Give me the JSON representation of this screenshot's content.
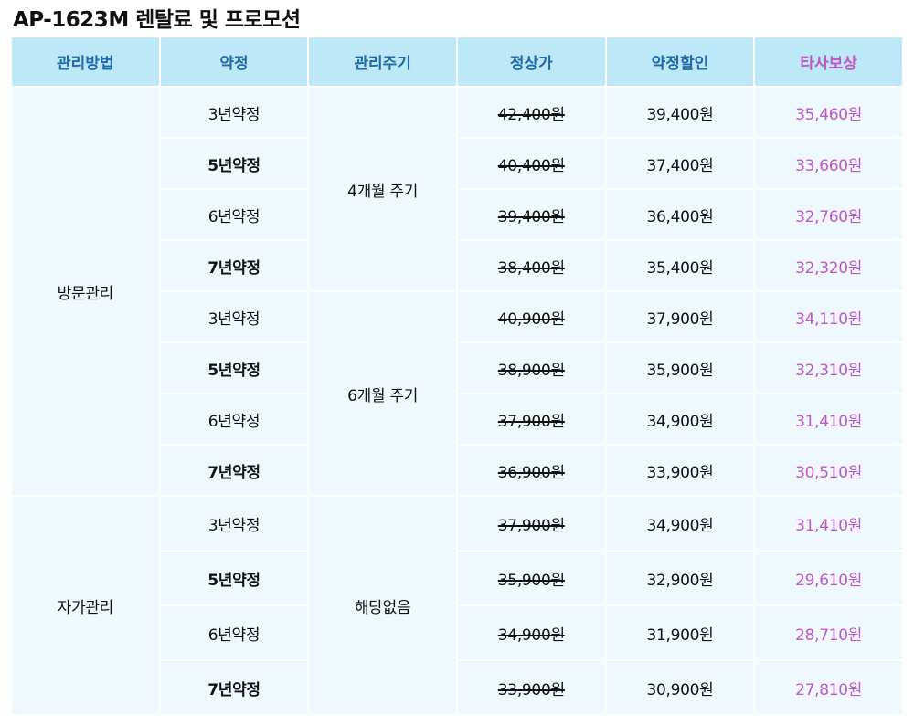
{
  "title": "AP-1623M 렌탈료 및 프로모션",
  "headers": {
    "method": "관리방법",
    "term": "약정",
    "cycle": "관리주기",
    "list_price": "정상가",
    "contract_discount": "약정할인",
    "competitor_comp": "타사보상"
  },
  "groups": {
    "visit": {
      "method": "방문관리",
      "cycle_a": "4개월 주기",
      "cycle_b": "6개월 주기",
      "rows": [
        {
          "term": "3년약정",
          "list": "42,400원",
          "discount": "39,400원",
          "comp": "35,460원"
        },
        {
          "term": "5년약정",
          "list": "40,400원",
          "discount": "37,400원",
          "comp": "33,660원"
        },
        {
          "term": "6년약정",
          "list": "39,400원",
          "discount": "36,400원",
          "comp": "32,760원"
        },
        {
          "term": "7년약정",
          "list": "38,400원",
          "discount": "35,400원",
          "comp": "32,320원"
        },
        {
          "term": "3년약정",
          "list": "40,900원",
          "discount": "37,900원",
          "comp": "34,110원"
        },
        {
          "term": "5년약정",
          "list": "38,900원",
          "discount": "35,900원",
          "comp": "32,310원"
        },
        {
          "term": "6년약정",
          "list": "37,900원",
          "discount": "34,900원",
          "comp": "31,410원"
        },
        {
          "term": "7년약정",
          "list": "36,900원",
          "discount": "33,900원",
          "comp": "30,510원"
        }
      ]
    },
    "self": {
      "method": "자가관리",
      "cycle": "해당없음",
      "rows": [
        {
          "term": "3년약정",
          "list": "37,900원",
          "discount": "34,900원",
          "comp": "31,410원"
        },
        {
          "term": "5년약정",
          "list": "35,900원",
          "discount": "32,900원",
          "comp": "29,610원"
        },
        {
          "term": "6년약정",
          "list": "34,900원",
          "discount": "31,900원",
          "comp": "28,710원"
        },
        {
          "term": "7년약정",
          "list": "33,900원",
          "discount": "30,900원",
          "comp": "27,810원"
        }
      ]
    }
  },
  "colors": {
    "header_bg": "#bce8f8",
    "header_text": "#1f6aa8",
    "competitor_text": "#c256c4",
    "cell_bg": "#eff9fd"
  }
}
